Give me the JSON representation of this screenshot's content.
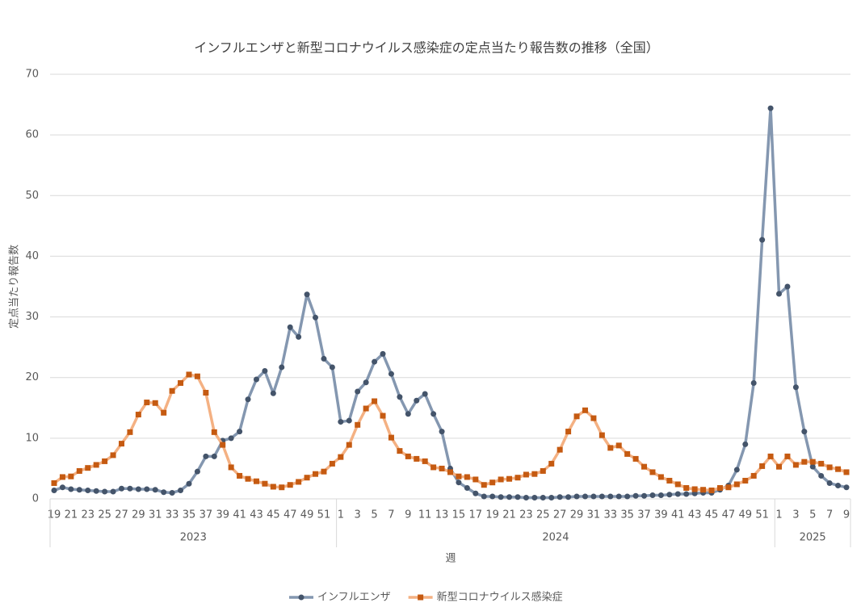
{
  "chart_data": {
    "type": "line",
    "title": "インフルエンザと新型コロナウイルス感染症の定点当たり報告数の推移（全国）",
    "y_label": "定点当たり報告数",
    "x_label": "週",
    "categories": [
      "19",
      null,
      "21",
      null,
      "23",
      null,
      "25",
      null,
      "27",
      null,
      "29",
      null,
      "31",
      null,
      "33",
      null,
      "35",
      null,
      "37",
      null,
      "39",
      null,
      "41",
      null,
      "43",
      null,
      "45",
      null,
      "47",
      null,
      "49",
      null,
      "51",
      null,
      "1",
      null,
      "3",
      null,
      "5",
      null,
      "7",
      null,
      "9",
      null,
      "11",
      null,
      "13",
      null,
      "15",
      null,
      "17",
      null,
      "19",
      null,
      "21",
      null,
      "23",
      null,
      "25",
      null,
      "27",
      null,
      "29",
      null,
      "31",
      null,
      "33",
      null,
      "35",
      null,
      "37",
      null,
      "39",
      null,
      "41",
      null,
      "43",
      null,
      "45",
      null,
      "47",
      null,
      "49",
      null,
      "51",
      null,
      "1",
      null,
      "3",
      null,
      "5",
      null,
      "7",
      null,
      "9"
    ],
    "x_groups": [
      "2023",
      "2024",
      "2025"
    ],
    "series": [
      {
        "name": "インフルエンザ",
        "color": "#8497b0",
        "marker_color": "#44546a",
        "marker": "circle",
        "values": [
          1.4,
          1.9,
          1.6,
          1.5,
          1.4,
          1.3,
          1.2,
          1.2,
          1.7,
          1.7,
          1.6,
          1.6,
          1.5,
          1.1,
          1.0,
          1.4,
          2.5,
          4.5,
          7.0,
          7.0,
          9.6,
          10.0,
          11.1,
          16.4,
          19.7,
          21.1,
          17.4,
          21.7,
          28.3,
          26.7,
          33.7,
          29.9,
          23.1,
          21.7,
          12.7,
          12.9,
          17.7,
          19.2,
          22.6,
          23.9,
          20.6,
          16.8,
          14.0,
          16.2,
          17.3,
          14.0,
          11.1,
          5.0,
          2.7,
          1.8,
          0.9,
          0.4,
          0.4,
          0.3,
          0.3,
          0.3,
          0.2,
          0.2,
          0.2,
          0.2,
          0.3,
          0.3,
          0.4,
          0.4,
          0.4,
          0.4,
          0.4,
          0.4,
          0.4,
          0.5,
          0.5,
          0.6,
          0.6,
          0.7,
          0.8,
          0.8,
          0.9,
          1.0,
          1.0,
          1.5,
          2.2,
          4.8,
          9.0,
          19.1,
          42.7,
          64.4,
          33.8,
          35.0,
          18.4,
          11.1,
          5.3,
          3.8,
          2.6,
          2.2,
          1.9
        ]
      },
      {
        "name": "新型コロナウイルス感染症",
        "color": "#f4b183",
        "marker_color": "#c55a11",
        "marker": "square",
        "values": [
          2.6,
          3.6,
          3.7,
          4.6,
          5.1,
          5.6,
          6.2,
          7.2,
          9.1,
          11.0,
          13.9,
          15.9,
          15.8,
          14.2,
          17.8,
          19.1,
          20.5,
          20.2,
          17.5,
          11.0,
          8.9,
          5.2,
          3.8,
          3.3,
          2.9,
          2.5,
          2.0,
          1.9,
          2.3,
          2.8,
          3.5,
          4.1,
          4.5,
          5.8,
          6.9,
          8.9,
          12.2,
          14.9,
          16.1,
          13.7,
          10.1,
          7.9,
          7.0,
          6.6,
          6.2,
          5.2,
          5.0,
          4.4,
          3.7,
          3.6,
          3.2,
          2.3,
          2.7,
          3.2,
          3.3,
          3.5,
          4.0,
          4.1,
          4.6,
          5.8,
          8.1,
          11.1,
          13.6,
          14.6,
          13.3,
          10.5,
          8.4,
          8.8,
          7.4,
          6.6,
          5.3,
          4.4,
          3.6,
          3.0,
          2.4,
          1.8,
          1.6,
          1.5,
          1.4,
          1.8,
          1.9,
          2.4,
          3.0,
          3.8,
          5.4,
          7.0,
          5.3,
          7.0,
          5.6,
          6.1,
          6.1,
          5.8,
          5.2,
          4.9,
          4.4
        ]
      }
    ],
    "ylim": [
      0,
      70
    ],
    "yticks": [
      0,
      10,
      20,
      30,
      40,
      50,
      60,
      70
    ],
    "grid": true,
    "legend": "bottom"
  }
}
